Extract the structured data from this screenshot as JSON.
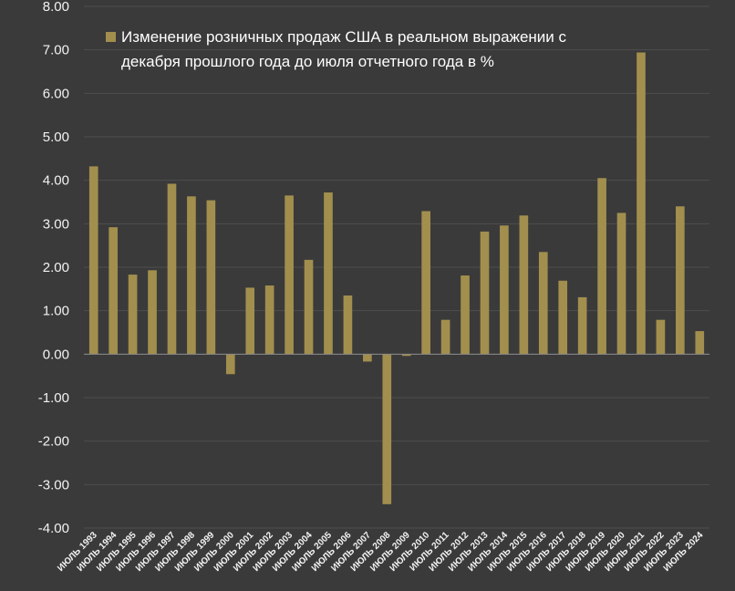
{
  "colors": {
    "background": "#3a3a3a",
    "bar": "#a28f4e",
    "grid": "#4e4e4e",
    "text": "#f2f2f2"
  },
  "chart_data": {
    "type": "bar",
    "categories": [
      "ИЮЛЬ 1993",
      "ИЮЛЬ 1994",
      "ИЮЛЬ 1995",
      "ИЮЛЬ 1996",
      "ИЮЛЬ 1997",
      "ИЮЛЬ 1998",
      "ИЮЛЬ 1999",
      "ИЮЛЬ 2000",
      "ИЮЛЬ 2001",
      "ИЮЛЬ 2002",
      "ИЮЛЬ 2003",
      "ИЮЛЬ 2004",
      "ИЮЛЬ 2005",
      "ИЮЛЬ 2006",
      "ИЮЛЬ 2007",
      "ИЮЛЬ 2008",
      "ИЮЛЬ 2009",
      "ИЮЛЬ 2010",
      "ИЮЛЬ 2011",
      "ИЮЛЬ 2012",
      "ИЮЛЬ 2013",
      "ИЮЛЬ 2014",
      "ИЮЛЬ 2015",
      "ИЮЛЬ 2016",
      "ИЮЛЬ 2017",
      "ИЮЛЬ 2018",
      "ИЮЛЬ 2019",
      "ИЮЛЬ 2020",
      "ИЮЛЬ 2021",
      "ИЮЛЬ 2022",
      "ИЮЛЬ 2023",
      "ИЮЛЬ 2024"
    ],
    "series": [
      {
        "name": "Изменение розничных продаж США в реальном выражении с декабря прошлого года до июля отчетного года в %",
        "legend_lines": [
          "Изменение розничных продаж США в реальном выражении с",
          "декабря прошлого года до июля отчетного года в %"
        ],
        "values": [
          4.32,
          2.92,
          1.83,
          1.93,
          3.92,
          3.63,
          3.54,
          -0.46,
          1.53,
          1.58,
          3.65,
          2.17,
          3.72,
          1.35,
          -0.17,
          -3.45,
          -0.04,
          3.29,
          0.79,
          1.81,
          2.82,
          2.96,
          3.19,
          2.35,
          1.69,
          1.31,
          4.05,
          3.25,
          6.94,
          0.79,
          3.4,
          0.53
        ]
      }
    ],
    "yticks": [
      "8.00",
      "7.00",
      "6.00",
      "5.00",
      "4.00",
      "3.00",
      "2.00",
      "1.00",
      "0.00",
      "-1.00",
      "-2.00",
      "-3.00",
      "-4.00"
    ],
    "ylim": [
      -4,
      8
    ],
    "grid": true,
    "legend_position": "top-left"
  }
}
